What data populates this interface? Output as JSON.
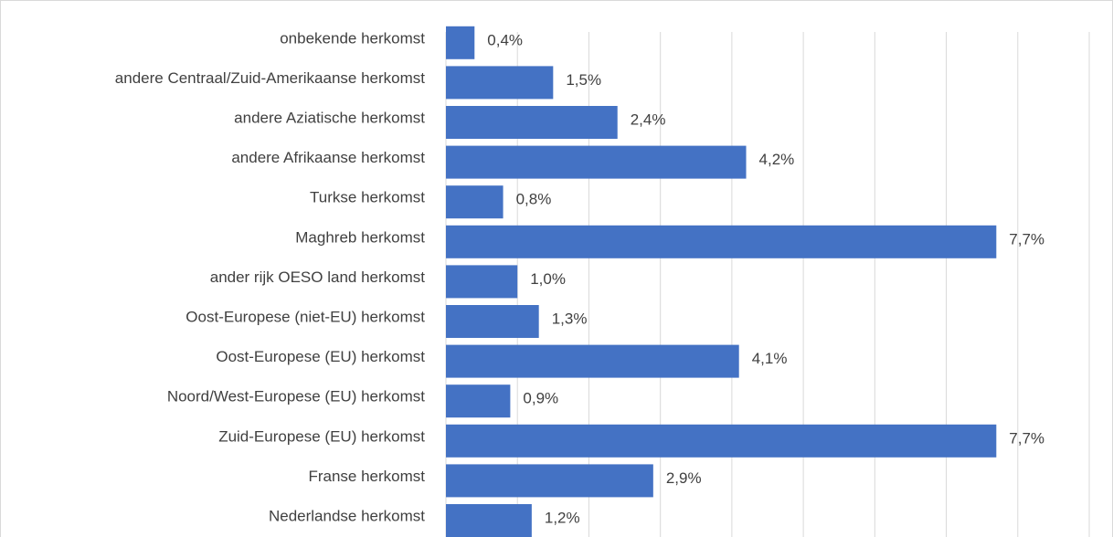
{
  "chart_data": {
    "type": "bar",
    "orientation": "horizontal",
    "categories": [
      "onbekende herkomst",
      "andere Centraal/Zuid-Amerikaanse herkomst",
      "andere Aziatische herkomst",
      "andere Afrikaanse herkomst",
      "Turkse herkomst",
      "Maghreb herkomst",
      "ander rijk OESO land herkomst",
      "Oost-Europese (niet-EU) herkomst",
      "Oost-Europese (EU) herkomst",
      "Noord/West-Europese (EU) herkomst",
      "Zuid-Europese (EU) herkomst",
      "Franse herkomst",
      "Nederlandse herkomst"
    ],
    "values": [
      0.4,
      1.5,
      2.4,
      4.2,
      0.8,
      7.7,
      1.0,
      1.3,
      4.1,
      0.9,
      7.7,
      2.9,
      1.2
    ],
    "value_labels": [
      "0,4%",
      "1,5%",
      "2,4%",
      "4,2%",
      "0,8%",
      "7,7%",
      "1,0%",
      "1,3%",
      "4,1%",
      "0,9%",
      "7,7%",
      "2,9%",
      "1,2%"
    ],
    "color": "#4472c4",
    "xlim": [
      0,
      9
    ],
    "xticks": [
      0,
      1,
      2,
      3,
      4,
      5,
      6,
      7,
      8,
      9
    ],
    "grid": true
  }
}
